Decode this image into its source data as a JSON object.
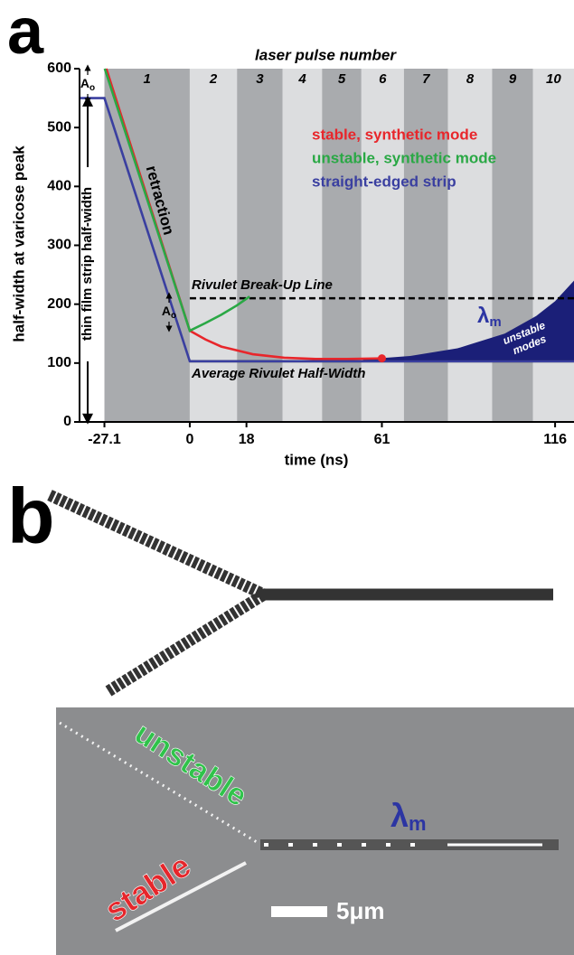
{
  "chart_data": {
    "type": "line",
    "panel_label": "a",
    "top_axis_title": "laser pulse number",
    "x_label": "time (ns)",
    "y_label": "half-width at varicose peak",
    "xlim": [
      -35,
      122
    ],
    "ylim": [
      0,
      600
    ],
    "xticks": [
      -27.1,
      0,
      18,
      61,
      116
    ],
    "yticks": [
      0,
      100,
      200,
      300,
      400,
      500,
      600
    ],
    "pulse_labels": [
      "1",
      "2",
      "3",
      "4",
      "5",
      "6",
      "7",
      "8",
      "9",
      "10"
    ],
    "pulse_edges": [
      -27.1,
      0,
      15,
      29.5,
      42,
      54.5,
      68,
      82,
      96,
      109,
      122
    ],
    "pulse_colors": [
      "#a9abae",
      "#dcdddf"
    ],
    "series": [
      {
        "name": "stable, synthetic mode",
        "color": "#e8262b",
        "x": [
          -26.5,
          0,
          5,
          10,
          20,
          30,
          40,
          50,
          61
        ],
        "y": [
          600,
          155,
          140,
          128,
          115,
          109,
          107,
          107,
          108
        ]
      },
      {
        "name": "unstable, synthetic mode",
        "color": "#2aa845",
        "x": [
          -27,
          0,
          5,
          10,
          15,
          19
        ],
        "y": [
          600,
          155,
          168,
          182,
          198,
          213
        ]
      },
      {
        "name": "straight-edged strip",
        "color": "#3a3fa0",
        "x": [
          -35,
          -27.1,
          0,
          122
        ],
        "y": [
          550,
          550,
          103,
          103
        ]
      }
    ],
    "marker": {
      "x": 61,
      "y": 108,
      "color": "#e8262b"
    },
    "shaded_region": {
      "label": [
        "unstable",
        "modes"
      ],
      "color": "#1b1f78",
      "x": [
        55,
        70,
        85,
        100,
        110,
        116,
        122
      ],
      "y": [
        106,
        112,
        125,
        150,
        180,
        205,
        240
      ],
      "baseline": 103
    },
    "reference_lines": [
      {
        "label": "Rivulet Break-Up Line",
        "y": 210,
        "xrange": [
          0,
          122
        ],
        "dashed": true
      },
      {
        "label": "Average Rivulet Half-Width",
        "y": 103,
        "xrange": [
          0,
          122
        ],
        "dashed": false
      }
    ],
    "annotations": {
      "retraction": "retraction",
      "strip_width": "thin film strip half-width",
      "amplitude": "A",
      "amplitude_sub": "o",
      "wavelength": "λ",
      "wavelength_sub": "m"
    }
  },
  "panel_b": {
    "panel_label": "b",
    "unstable_label": "unstable",
    "stable_label": "stable",
    "wavelength": "λ",
    "wavelength_sub": "m",
    "scale_bar": "5μm"
  }
}
